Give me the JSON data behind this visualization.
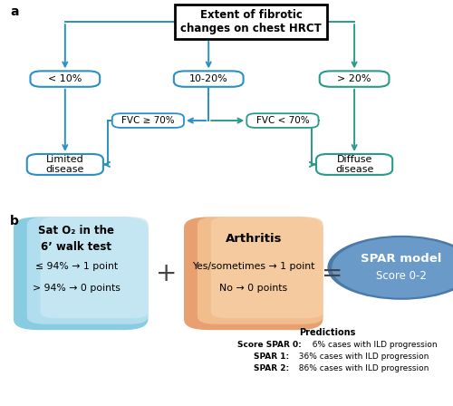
{
  "panel_a_label": "a",
  "panel_b_label": "b",
  "root_box_text": "Extent of fibrotic\nchanges on chest HRCT",
  "left_node_text": "< 10%",
  "mid_node_text": "10-20%",
  "right_node_text": "> 20%",
  "fvc_left_text": "FVC ≥ 70%",
  "fvc_right_text": "FVC < 70%",
  "limited_text": "Limited\ndisease",
  "diffuse_text": "Diffuse\ndisease",
  "arrow_blue": "#2a8fc4",
  "arrow_teal": "#2a9a8a",
  "sat_title": "Sat O₂ in the\n6’ walk test",
  "sat_line1": "≤ 94% → 1 point",
  "sat_line2": "> 94% → 0 points",
  "arthritis_title": "Arthritis",
  "arthritis_line1": "Yes/sometimes → 1 point",
  "arthritis_line2": "No → 0 points",
  "spar_title": "SPAR model",
  "spar_subtitle": "Score 0-2",
  "predictions_title": "Predictions",
  "pred0_bold": "Score SPAR 0:",
  "pred0_rest": "  6% cases with ILD progression",
  "pred1_bold": "SPAR 1:",
  "pred1_rest": "  36% cases with ILD progression",
  "pred2_bold": "SPAR 2:",
  "pred2_rest": "  86% cases with ILD progression",
  "bg_color": "#ffffff",
  "sat_color_light": "#a8ddf0",
  "sat_color_mid": "#c5e9f5",
  "art_color_light": "#f5c8a0",
  "art_color_mid": "#f8d8b8",
  "spar_fill": "#6a9bc8",
  "spar_border": "#4a7aaa",
  "node_blue_border": "#2a8fc4",
  "node_teal_border": "#2a9a8a"
}
